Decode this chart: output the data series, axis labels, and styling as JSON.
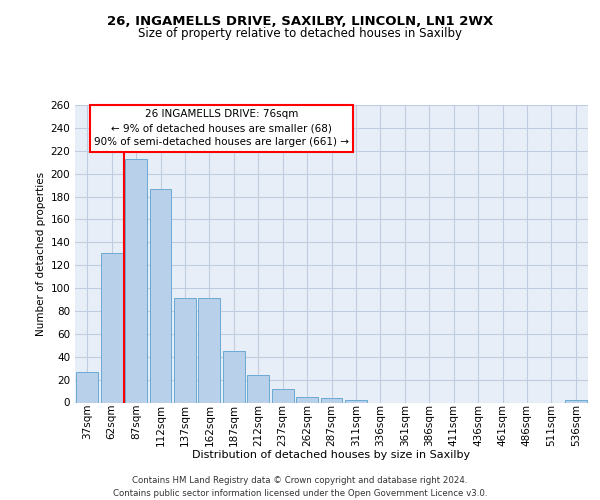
{
  "title1": "26, INGAMELLS DRIVE, SAXILBY, LINCOLN, LN1 2WX",
  "title2": "Size of property relative to detached houses in Saxilby",
  "xlabel": "Distribution of detached houses by size in Saxilby",
  "ylabel": "Number of detached properties",
  "bar_color": "#b8d0ea",
  "bar_edge_color": "#6aaad4",
  "categories": [
    "37sqm",
    "62sqm",
    "87sqm",
    "112sqm",
    "137sqm",
    "162sqm",
    "187sqm",
    "212sqm",
    "237sqm",
    "262sqm",
    "287sqm",
    "311sqm",
    "336sqm",
    "361sqm",
    "386sqm",
    "411sqm",
    "436sqm",
    "461sqm",
    "486sqm",
    "511sqm",
    "536sqm"
  ],
  "values": [
    27,
    131,
    213,
    187,
    91,
    91,
    45,
    24,
    12,
    5,
    4,
    2,
    0,
    0,
    0,
    0,
    0,
    0,
    0,
    0,
    2
  ],
  "property_line_x": 1.5,
  "annotation_text": "26 INGAMELLS DRIVE: 76sqm\n← 9% of detached houses are smaller (68)\n90% of semi-detached houses are larger (661) →",
  "vline_color": "red",
  "ylim": [
    0,
    260
  ],
  "yticks": [
    0,
    20,
    40,
    60,
    80,
    100,
    120,
    140,
    160,
    180,
    200,
    220,
    240,
    260
  ],
  "footer": "Contains HM Land Registry data © Crown copyright and database right 2024.\nContains public sector information licensed under the Open Government Licence v3.0.",
  "bg_color": "#e8eef8",
  "grid_color": "#c0cce0"
}
